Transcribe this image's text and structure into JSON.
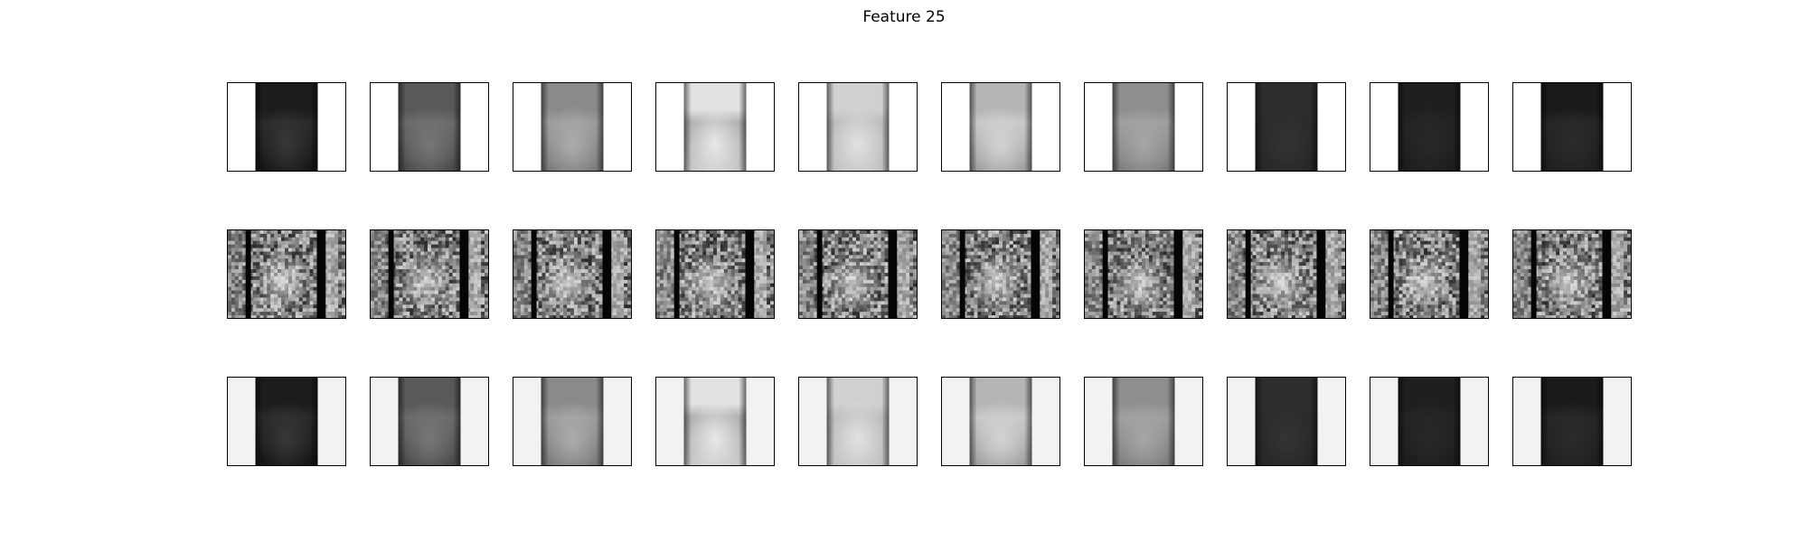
{
  "figure": {
    "title": "Feature 25"
  },
  "rows": [
    {
      "name": "masked-feature-row",
      "style": "masked",
      "side_color": "#ffffff",
      "tiles": [
        {
          "top": "#1c1c1c",
          "mid": "#2a2a2a",
          "bottom": "#151515",
          "spot": "#3a3a3a"
        },
        {
          "top": "#595959",
          "mid": "#6a6a6a",
          "bottom": "#4a4a4a",
          "spot": "#7a7a7a"
        },
        {
          "top": "#8a8a8a",
          "mid": "#9c9c9c",
          "bottom": "#7a7a7a",
          "spot": "#b0b0b0"
        },
        {
          "top": "#e2e2e2",
          "mid": "#b0b0b0",
          "bottom": "#c8c8c8",
          "spot": "#ededed"
        },
        {
          "top": "#d0d0d0",
          "mid": "#bdbdbd",
          "bottom": "#c2c2c2",
          "spot": "#e5e5e5"
        },
        {
          "top": "#b5b5b5",
          "mid": "#c8c8c8",
          "bottom": "#9e9e9e",
          "spot": "#d6d6d6"
        },
        {
          "top": "#8e8e8e",
          "mid": "#9f9f9f",
          "bottom": "#7c7c7c",
          "spot": "#a8a8a8"
        },
        {
          "top": "#2e2e2e",
          "mid": "#2b2b2b",
          "bottom": "#262626",
          "spot": "#353535"
        },
        {
          "top": "#1f1f1f",
          "mid": "#232323",
          "bottom": "#1c1c1c",
          "spot": "#292929"
        },
        {
          "top": "#1a1a1a",
          "mid": "#262626",
          "bottom": "#1e1e1e",
          "spot": "#2c2c2c"
        }
      ]
    },
    {
      "name": "texture-feature-row",
      "style": "texture",
      "tiles": [
        {
          "seed": 3
        },
        {
          "seed": 7
        },
        {
          "seed": 11
        },
        {
          "seed": 13
        },
        {
          "seed": 17
        },
        {
          "seed": 19
        },
        {
          "seed": 23
        },
        {
          "seed": 29
        },
        {
          "seed": 31
        },
        {
          "seed": 37
        }
      ]
    },
    {
      "name": "masked-feature-row-grey",
      "style": "masked",
      "side_color": "#f2f2f2",
      "tiles": [
        {
          "top": "#1c1c1c",
          "mid": "#2a2a2a",
          "bottom": "#151515",
          "spot": "#3a3a3a"
        },
        {
          "top": "#595959",
          "mid": "#6a6a6a",
          "bottom": "#4a4a4a",
          "spot": "#7a7a7a"
        },
        {
          "top": "#8a8a8a",
          "mid": "#9c9c9c",
          "bottom": "#7a7a7a",
          "spot": "#b0b0b0"
        },
        {
          "top": "#e2e2e2",
          "mid": "#b0b0b0",
          "bottom": "#c8c8c8",
          "spot": "#ededed"
        },
        {
          "top": "#d0d0d0",
          "mid": "#bdbdbd",
          "bottom": "#c2c2c2",
          "spot": "#e5e5e5"
        },
        {
          "top": "#b5b5b5",
          "mid": "#c8c8c8",
          "bottom": "#9e9e9e",
          "spot": "#d6d6d6"
        },
        {
          "top": "#8e8e8e",
          "mid": "#9f9f9f",
          "bottom": "#7c7c7c",
          "spot": "#a8a8a8"
        },
        {
          "top": "#2e2e2e",
          "mid": "#2b2b2b",
          "bottom": "#262626",
          "spot": "#353535"
        },
        {
          "top": "#1f1f1f",
          "mid": "#232323",
          "bottom": "#1c1c1c",
          "spot": "#292929"
        },
        {
          "top": "#1a1a1a",
          "mid": "#262626",
          "bottom": "#1e1e1e",
          "spot": "#2c2c2c"
        }
      ]
    }
  ]
}
